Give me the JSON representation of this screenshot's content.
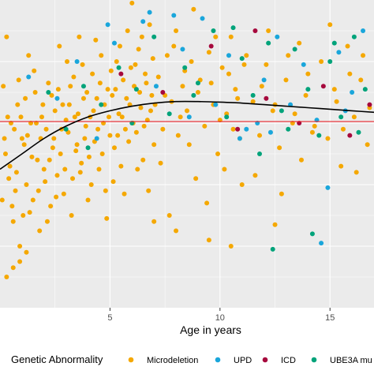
{
  "chart_data": {
    "type": "scatter",
    "title": "",
    "xlabel": "Age in years",
    "ylabel": "",
    "xlim": [
      0,
      17
    ],
    "ylim": [
      0,
      1
    ],
    "x_ticks": [
      5,
      10,
      15
    ],
    "grid": true,
    "background": "#ebebeb",
    "legend_placement": "bottom",
    "legend": {
      "title": "Genetic Abnormality",
      "entries": [
        "Microdeletion",
        "UPD",
        "ICD",
        "UBE3A mu"
      ]
    },
    "series": [
      {
        "name": "Microdeletion",
        "color": "#f5a800",
        "points": [
          [
            0.1,
            0.35
          ],
          [
            0.2,
            0.55
          ],
          [
            0.3,
            0.88
          ],
          [
            0.4,
            0.42
          ],
          [
            0.5,
            0.6
          ],
          [
            0.6,
            0.28
          ],
          [
            0.7,
            0.38
          ],
          [
            0.8,
            0.66
          ],
          [
            0.9,
            0.2
          ],
          [
            1.0,
            0.55
          ],
          [
            0.15,
            0.72
          ],
          [
            0.25,
            0.5
          ],
          [
            0.35,
            0.62
          ],
          [
            0.45,
            0.46
          ],
          [
            0.55,
            0.33
          ],
          [
            0.65,
            0.58
          ],
          [
            0.75,
            0.44
          ],
          [
            0.85,
            0.74
          ],
          [
            0.95,
            0.62
          ],
          [
            1.05,
            0.3
          ],
          [
            1.1,
            0.53
          ],
          [
            1.2,
            0.4
          ],
          [
            1.3,
            0.82
          ],
          [
            1.4,
            0.6
          ],
          [
            1.5,
            0.35
          ],
          [
            1.6,
            0.7
          ],
          [
            1.7,
            0.48
          ],
          [
            1.8,
            0.25
          ],
          [
            1.9,
            0.62
          ],
          [
            2.0,
            0.45
          ],
          [
            1.15,
            0.68
          ],
          [
            1.25,
            0.56
          ],
          [
            1.35,
            0.31
          ],
          [
            1.45,
            0.49
          ],
          [
            1.55,
            0.77
          ],
          [
            1.65,
            0.6
          ],
          [
            1.75,
            0.38
          ],
          [
            1.85,
            0.55
          ],
          [
            1.95,
            0.66
          ],
          [
            2.05,
            0.41
          ],
          [
            2.1,
            0.58
          ],
          [
            2.2,
            0.73
          ],
          [
            2.3,
            0.33
          ],
          [
            2.4,
            0.52
          ],
          [
            2.5,
            0.64
          ],
          [
            2.6,
            0.43
          ],
          [
            2.7,
            0.85
          ],
          [
            2.8,
            0.58
          ],
          [
            2.9,
            0.37
          ],
          [
            3.0,
            0.61
          ],
          [
            2.15,
            0.28
          ],
          [
            2.25,
            0.48
          ],
          [
            2.35,
            0.69
          ],
          [
            2.45,
            0.55
          ],
          [
            2.55,
            0.36
          ],
          [
            2.65,
            0.71
          ],
          [
            2.75,
            0.5
          ],
          [
            2.85,
            0.66
          ],
          [
            2.95,
            0.45
          ],
          [
            3.05,
            0.8
          ],
          [
            3.1,
            0.57
          ],
          [
            3.2,
            0.72
          ],
          [
            3.3,
            0.42
          ],
          [
            3.4,
            0.62
          ],
          [
            3.5,
            0.53
          ],
          [
            3.6,
            0.88
          ],
          [
            3.7,
            0.47
          ],
          [
            3.8,
            0.68
          ],
          [
            3.9,
            0.59
          ],
          [
            4.0,
            0.35
          ],
          [
            3.15,
            0.66
          ],
          [
            3.25,
            0.3
          ],
          [
            3.35,
            0.75
          ],
          [
            3.45,
            0.51
          ],
          [
            3.55,
            0.63
          ],
          [
            3.65,
            0.44
          ],
          [
            3.75,
            0.79
          ],
          [
            3.85,
            0.55
          ],
          [
            3.95,
            0.7
          ],
          [
            4.05,
            0.49
          ],
          [
            4.1,
            0.62
          ],
          [
            4.2,
            0.76
          ],
          [
            4.3,
            0.54
          ],
          [
            4.4,
            0.68
          ],
          [
            4.5,
            0.45
          ],
          [
            4.6,
            0.82
          ],
          [
            4.7,
            0.6
          ],
          [
            4.8,
            0.38
          ],
          [
            4.9,
            0.71
          ],
          [
            5.0,
            0.56
          ],
          [
            4.15,
            0.4
          ],
          [
            4.25,
            0.64
          ],
          [
            4.35,
            0.87
          ],
          [
            4.45,
            0.58
          ],
          [
            4.55,
            0.73
          ],
          [
            4.65,
            0.5
          ],
          [
            4.75,
            0.66
          ],
          [
            4.85,
            0.29
          ],
          [
            4.95,
            0.62
          ],
          [
            5.05,
            0.77
          ],
          [
            5.1,
            0.69
          ],
          [
            5.2,
            0.52
          ],
          [
            5.3,
            0.8
          ],
          [
            5.4,
            0.63
          ],
          [
            5.5,
            0.46
          ],
          [
            5.6,
            0.74
          ],
          [
            5.7,
            0.58
          ],
          [
            5.8,
            0.9
          ],
          [
            5.9,
            0.66
          ],
          [
            6.0,
            0.99
          ],
          [
            5.15,
            0.41
          ],
          [
            5.25,
            0.71
          ],
          [
            5.35,
            0.56
          ],
          [
            5.45,
            0.85
          ],
          [
            5.55,
            0.62
          ],
          [
            5.65,
            0.37
          ],
          [
            5.75,
            0.68
          ],
          [
            5.85,
            0.54
          ],
          [
            5.95,
            0.78
          ],
          [
            6.05,
            0.6
          ],
          [
            6.1,
            0.72
          ],
          [
            6.2,
            0.57
          ],
          [
            6.3,
            0.84
          ],
          [
            6.4,
            0.65
          ],
          [
            6.5,
            0.48
          ],
          [
            6.6,
            0.76
          ],
          [
            6.7,
            0.61
          ],
          [
            6.8,
            0.92
          ],
          [
            6.9,
            0.69
          ],
          [
            7.0,
            0.53
          ],
          [
            6.15,
            0.79
          ],
          [
            6.25,
            0.45
          ],
          [
            6.35,
            0.7
          ],
          [
            6.45,
            0.88
          ],
          [
            6.55,
            0.59
          ],
          [
            6.65,
            0.73
          ],
          [
            6.75,
            0.38
          ],
          [
            6.85,
            0.64
          ],
          [
            6.95,
            0.81
          ],
          [
            7.05,
            0.66
          ],
          [
            7.2,
            0.75
          ],
          [
            7.4,
            0.58
          ],
          [
            7.6,
            0.82
          ],
          [
            7.8,
            0.67
          ],
          [
            8.0,
            0.9
          ],
          [
            8.2,
            0.62
          ],
          [
            8.4,
            0.77
          ],
          [
            8.6,
            0.53
          ],
          [
            8.8,
            0.97
          ],
          [
            9.0,
            0.7
          ],
          [
            7.3,
            0.47
          ],
          [
            7.5,
            0.69
          ],
          [
            7.7,
            0.3
          ],
          [
            7.9,
            0.85
          ],
          [
            8.1,
            0.56
          ],
          [
            8.3,
            0.72
          ],
          [
            8.5,
            0.64
          ],
          [
            8.7,
            0.8
          ],
          [
            8.9,
            0.42
          ],
          [
            9.1,
            0.74
          ],
          [
            9.3,
            0.59
          ],
          [
            9.5,
            0.83
          ],
          [
            9.7,
            0.66
          ],
          [
            9.9,
            0.5
          ],
          [
            10.1,
            0.78
          ],
          [
            10.3,
            0.63
          ],
          [
            10.5,
            0.88
          ],
          [
            10.7,
            0.71
          ],
          [
            10.9,
            0.55
          ],
          [
            11.1,
            0.79
          ],
          [
            9.4,
            0.34
          ],
          [
            9.6,
            0.73
          ],
          [
            9.8,
            0.88
          ],
          [
            10.0,
            0.61
          ],
          [
            10.2,
            0.45
          ],
          [
            10.4,
            0.76
          ],
          [
            10.6,
            0.58
          ],
          [
            10.8,
            0.68
          ],
          [
            11.0,
            0.4
          ],
          [
            11.2,
            0.82
          ],
          [
            11.5,
            0.67
          ],
          [
            11.8,
            0.56
          ],
          [
            12.1,
            0.79
          ],
          [
            12.4,
            0.64
          ],
          [
            12.7,
            0.52
          ],
          [
            13.0,
            0.74
          ],
          [
            13.3,
            0.6
          ],
          [
            13.6,
            0.86
          ],
          [
            13.9,
            0.69
          ],
          [
            14.2,
            0.57
          ],
          [
            11.6,
            0.43
          ],
          [
            11.9,
            0.72
          ],
          [
            12.2,
            0.9
          ],
          [
            12.5,
            0.66
          ],
          [
            12.8,
            0.37
          ],
          [
            13.1,
            0.82
          ],
          [
            13.4,
            0.63
          ],
          [
            13.7,
            0.48
          ],
          [
            14.0,
            0.76
          ],
          [
            14.3,
            0.59
          ],
          [
            14.6,
            0.8
          ],
          [
            14.9,
            0.55
          ],
          [
            15.2,
            0.71
          ],
          [
            15.5,
            0.46
          ],
          [
            15.8,
            0.85
          ],
          [
            16.1,
            0.62
          ],
          [
            16.4,
            0.74
          ],
          [
            16.7,
            0.53
          ],
          [
            15.0,
            0.92
          ],
          [
            15.3,
            0.67
          ],
          [
            15.6,
            0.58
          ],
          [
            15.9,
            0.76
          ],
          [
            16.2,
            0.44
          ],
          [
            16.5,
            0.82
          ],
          [
            16.8,
            0.65
          ],
          [
            8.0,
            0.25
          ],
          [
            9.5,
            0.22
          ],
          [
            10.5,
            0.2
          ],
          [
            7.0,
            0.28
          ],
          [
            12.5,
            0.27
          ],
          [
            0.6,
            0.13
          ],
          [
            0.9,
            0.15
          ],
          [
            1.2,
            0.18
          ],
          [
            0.3,
            0.1
          ]
        ]
      },
      {
        "name": "UPD",
        "color": "#1aa6db",
        "points": [
          [
            1.3,
            0.75
          ],
          [
            2.6,
            0.68
          ],
          [
            3.5,
            0.8
          ],
          [
            4.4,
            0.55
          ],
          [
            5.2,
            0.86
          ],
          [
            6.5,
            0.93
          ],
          [
            7.1,
            0.72
          ],
          [
            7.9,
            0.95
          ],
          [
            8.6,
            0.62
          ],
          [
            9.2,
            0.94
          ],
          [
            9.8,
            0.66
          ],
          [
            10.4,
            0.82
          ],
          [
            11.2,
            0.58
          ],
          [
            11.7,
            0.6
          ],
          [
            12.0,
            0.74
          ],
          [
            12.6,
            0.88
          ],
          [
            13.2,
            0.66
          ],
          [
            13.8,
            0.79
          ],
          [
            14.4,
            0.61
          ],
          [
            14.9,
            0.39
          ],
          [
            15.4,
            0.83
          ],
          [
            16.0,
            0.7
          ],
          [
            16.5,
            0.9
          ],
          [
            6.8,
            0.96
          ],
          [
            8.3,
            0.84
          ],
          [
            10.9,
            0.55
          ],
          [
            12.3,
            0.57
          ],
          [
            14.6,
            0.21
          ],
          [
            15.7,
            0.64
          ],
          [
            4.9,
            0.92
          ]
        ]
      },
      {
        "name": "ICD",
        "color": "#a6093d",
        "points": [
          [
            5.5,
            0.76
          ],
          [
            7.4,
            0.7
          ],
          [
            9.6,
            0.85
          ],
          [
            10.8,
            0.58
          ],
          [
            12.1,
            0.68
          ],
          [
            13.6,
            0.6
          ],
          [
            14.7,
            0.72
          ],
          [
            15.9,
            0.56
          ],
          [
            11.6,
            0.9
          ],
          [
            16.8,
            0.66
          ]
        ]
      },
      {
        "name": "UBE3A mu",
        "color": "#00a37a",
        "points": [
          [
            2.2,
            0.7
          ],
          [
            3.0,
            0.58
          ],
          [
            3.8,
            0.72
          ],
          [
            4.6,
            0.66
          ],
          [
            5.4,
            0.78
          ],
          [
            6.2,
            0.71
          ],
          [
            7.0,
            0.88
          ],
          [
            7.7,
            0.63
          ],
          [
            8.4,
            0.78
          ],
          [
            9.0,
            0.73
          ],
          [
            9.7,
            0.9
          ],
          [
            10.3,
            0.62
          ],
          [
            11.0,
            0.81
          ],
          [
            11.5,
            0.69
          ],
          [
            12.2,
            0.86
          ],
          [
            12.8,
            0.64
          ],
          [
            13.4,
            0.84
          ],
          [
            14.0,
            0.71
          ],
          [
            14.5,
            0.56
          ],
          [
            15.0,
            0.8
          ],
          [
            15.5,
            0.62
          ],
          [
            16.1,
            0.88
          ],
          [
            16.6,
            0.71
          ],
          [
            4.0,
            0.52
          ],
          [
            6.0,
            0.6
          ],
          [
            8.8,
            0.69
          ],
          [
            10.6,
            0.91
          ],
          [
            13.1,
            0.58
          ],
          [
            14.2,
            0.24
          ],
          [
            15.2,
            0.86
          ],
          [
            16.3,
            0.57
          ],
          [
            11.8,
            0.5
          ],
          [
            12.4,
            0.19
          ]
        ]
      }
    ],
    "trend_line": {
      "color": "#000000",
      "points": [
        [
          0,
          0.45
        ],
        [
          1,
          0.5
        ],
        [
          2,
          0.55
        ],
        [
          3,
          0.59
        ],
        [
          4,
          0.62
        ],
        [
          5,
          0.64
        ],
        [
          6,
          0.655
        ],
        [
          7,
          0.665
        ],
        [
          8,
          0.67
        ],
        [
          9,
          0.67
        ],
        [
          10,
          0.668
        ],
        [
          11,
          0.665
        ],
        [
          12,
          0.66
        ],
        [
          13,
          0.655
        ],
        [
          14,
          0.65
        ],
        [
          15,
          0.645
        ],
        [
          16,
          0.64
        ],
        [
          17,
          0.635
        ]
      ]
    },
    "reference_line": {
      "color": "#e8242b",
      "y": 0.605
    }
  }
}
